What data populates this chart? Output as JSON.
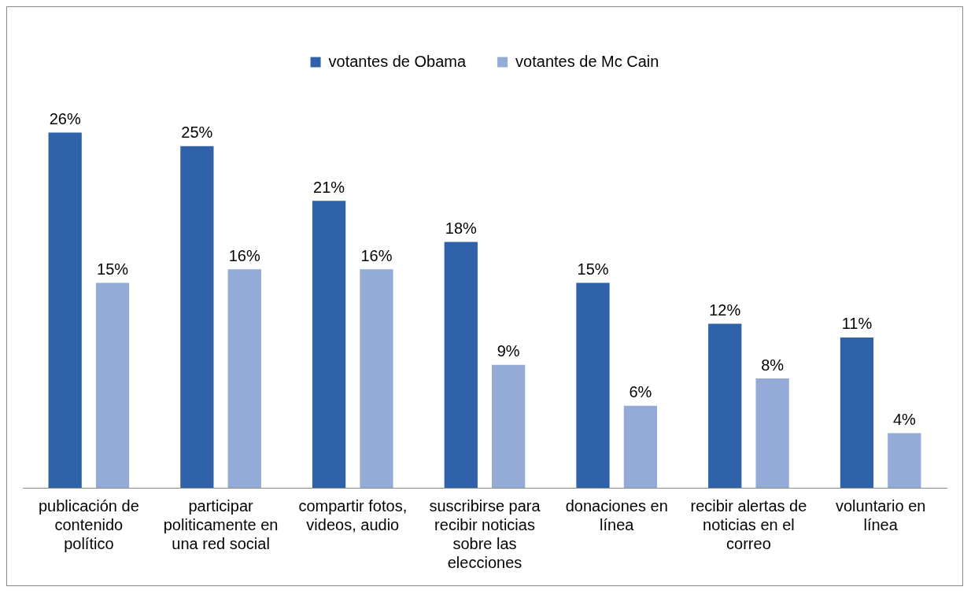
{
  "chart_data": {
    "type": "bar",
    "categories": [
      "publicación de contenido político",
      "participar politicamente en una red social",
      "compartir fotos, videos, audio",
      "suscribirse para recibir noticias sobre las elecciones",
      "donaciones en línea",
      "recibir alertas de noticias en el correo",
      "voluntario en línea"
    ],
    "series": [
      {
        "name": "votantes de Obama",
        "color": "#2f62a8",
        "values": [
          26,
          25,
          21,
          18,
          15,
          12,
          11
        ],
        "value_labels": [
          "26%",
          "25%",
          "21%",
          "18%",
          "15%",
          "12%",
          "11%"
        ]
      },
      {
        "name": "votantes de Mc Cain",
        "color": "#93abd6",
        "values": [
          15,
          16,
          16,
          9,
          6,
          8,
          4
        ],
        "value_labels": [
          "15%",
          "16%",
          "16%",
          "9%",
          "6%",
          "8%",
          "4%"
        ]
      }
    ],
    "legend": "top",
    "grid": false,
    "tick_labels": "x"
  }
}
